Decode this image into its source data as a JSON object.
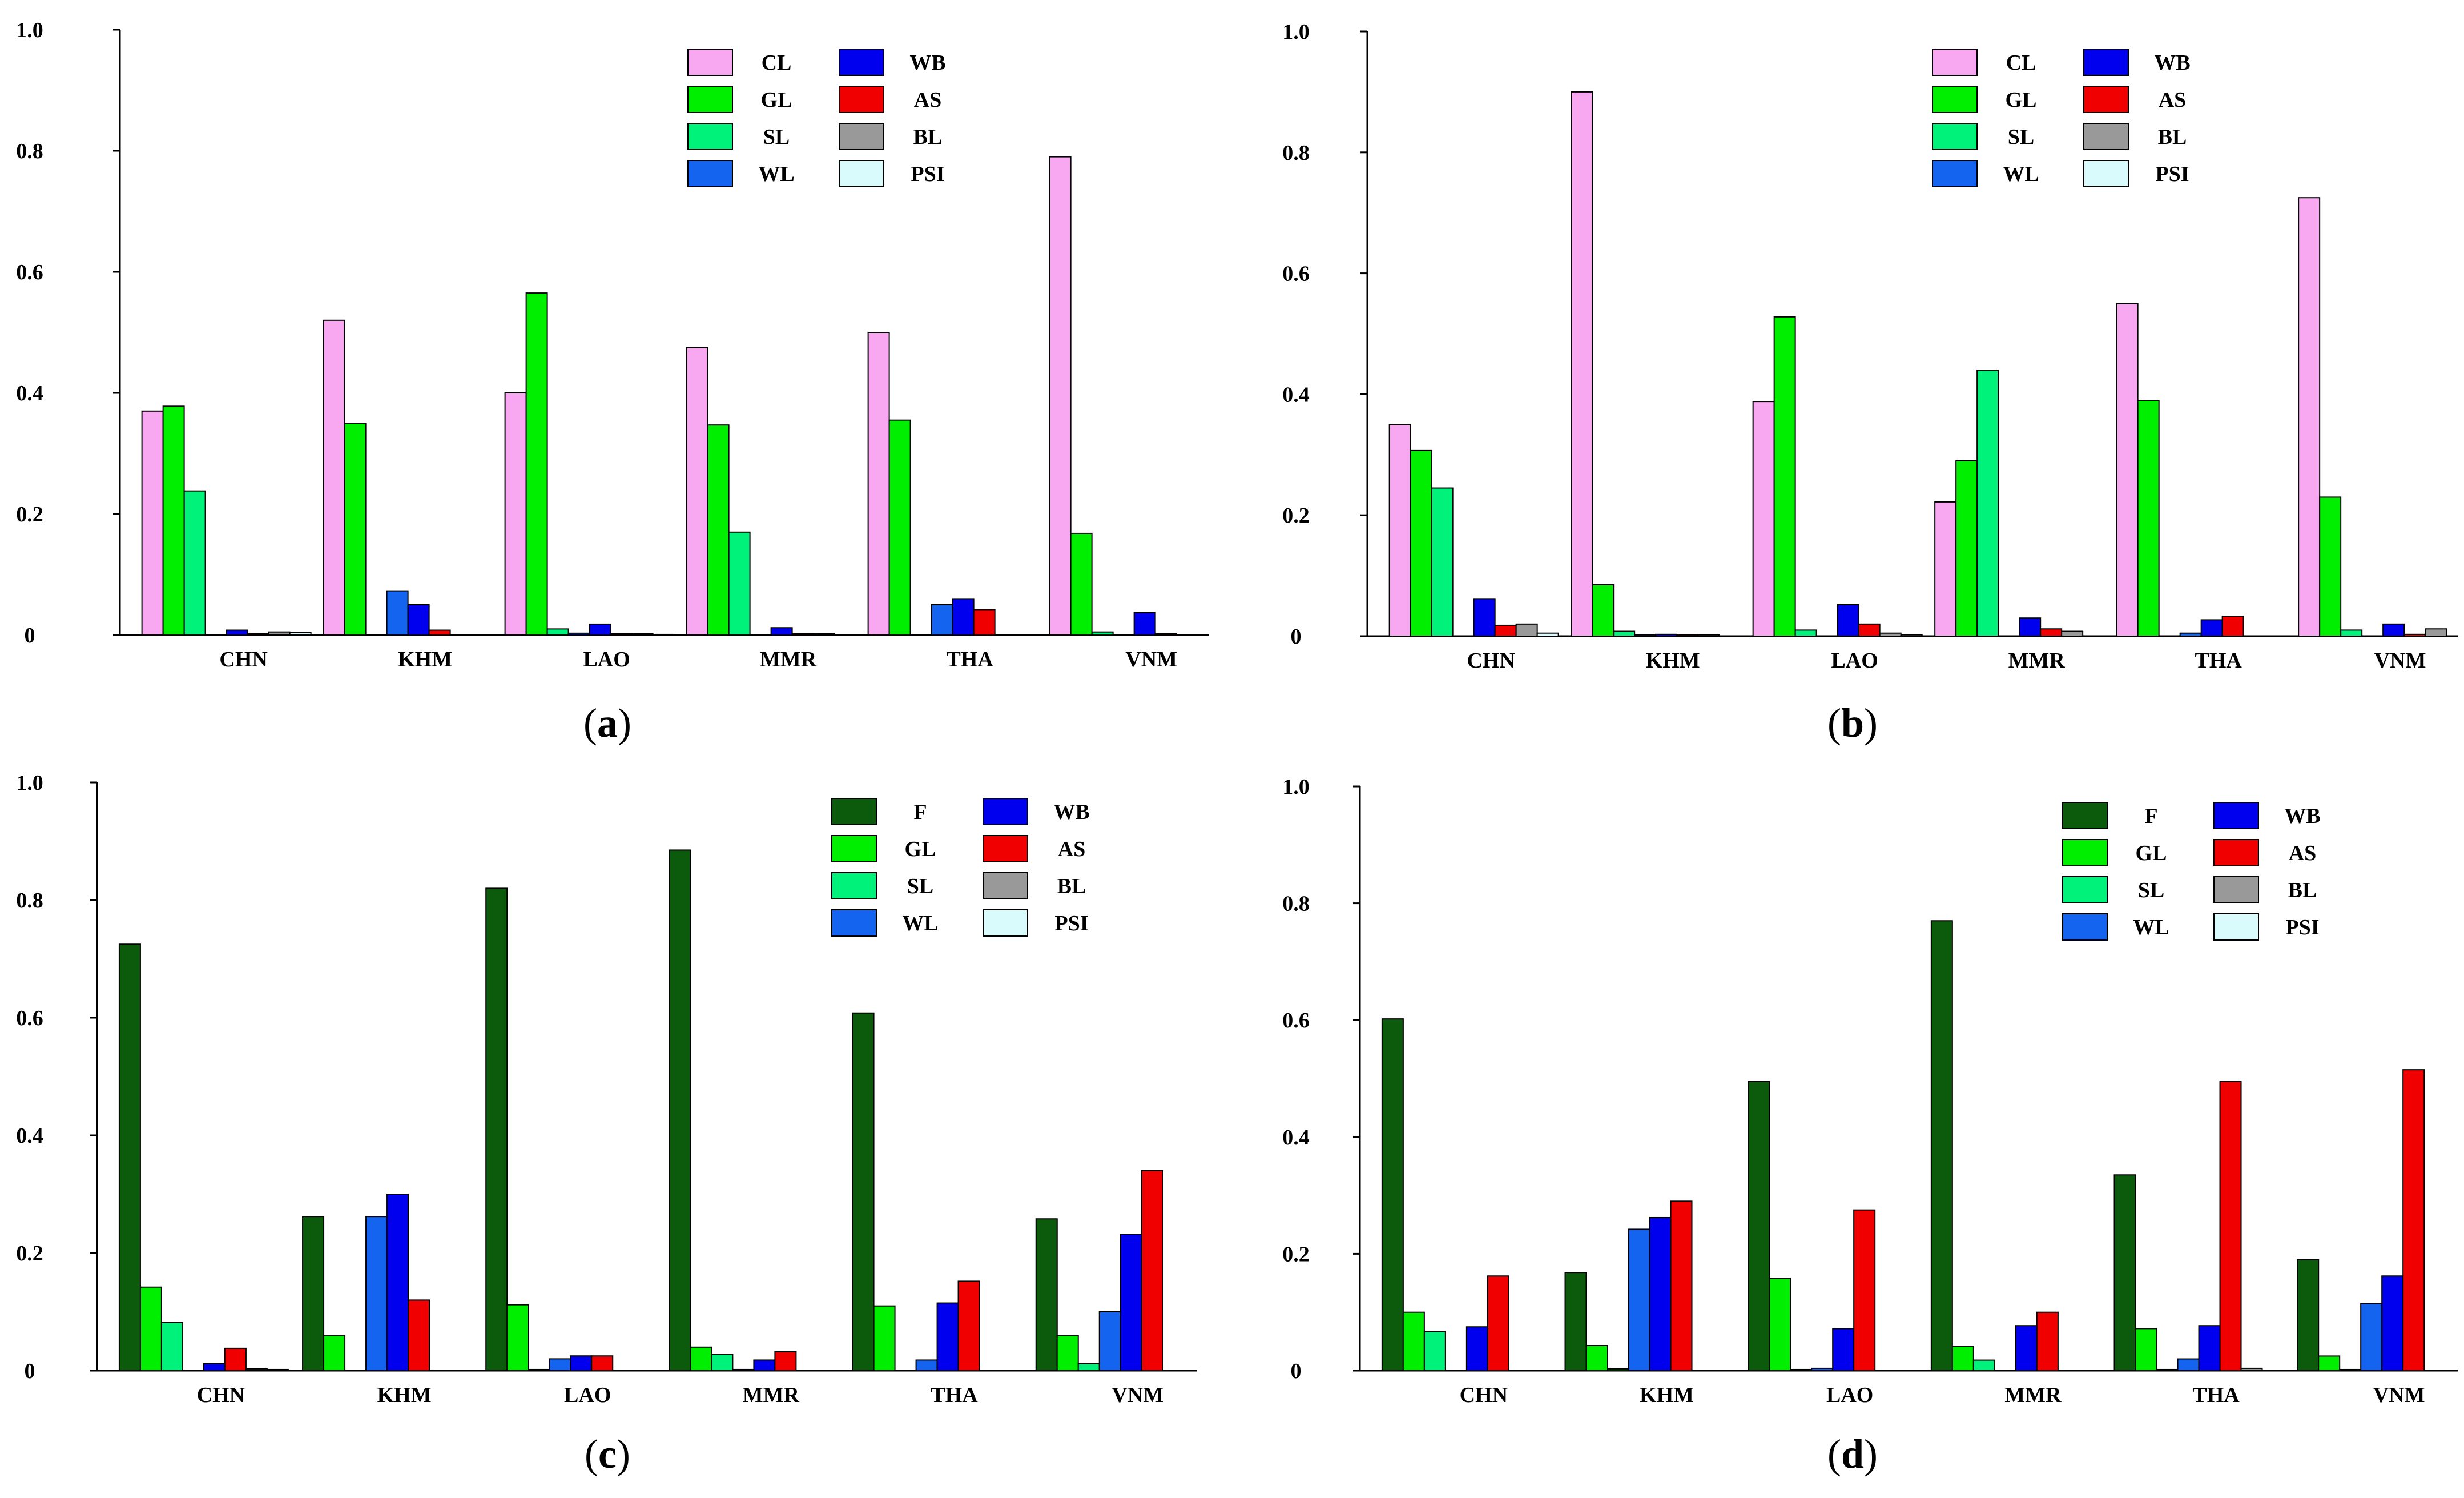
{
  "colors": {
    "F": "#0c5a0c",
    "CL": "#f7a8f0",
    "GL": "#00ee00",
    "SL": "#00f27a",
    "WL": "#1464f0",
    "WB": "#0000ee",
    "AS": "#f00000",
    "BL": "#999999",
    "PSI": "#d9fbfb"
  },
  "chart_data": [
    {
      "type": "bar",
      "panel_label": "(a)",
      "categories": [
        "CHN",
        "KHM",
        "LAO",
        "MMR",
        "THA",
        "VNM"
      ],
      "ylim": [
        0,
        1.0
      ],
      "yticks": [
        "0",
        "0.2",
        "0.4",
        "0.6",
        "0.8",
        "1.0"
      ],
      "xlabel": "",
      "ylabel": "",
      "legend": [
        "CL",
        "GL",
        "SL",
        "WL",
        "WB",
        "AS",
        "BL",
        "PSI"
      ],
      "series": [
        {
          "name": "CL",
          "values": [
            0.37,
            0.52,
            0.4,
            0.475,
            0.5,
            0.79
          ]
        },
        {
          "name": "GL",
          "values": [
            0.378,
            0.35,
            0.565,
            0.347,
            0.355,
            0.168
          ]
        },
        {
          "name": "SL",
          "values": [
            0.238,
            0.0,
            0.01,
            0.17,
            0.0,
            0.005
          ]
        },
        {
          "name": "WL",
          "values": [
            0.0,
            0.073,
            0.003,
            0.0,
            0.05,
            0.0
          ]
        },
        {
          "name": "WB",
          "values": [
            0.008,
            0.05,
            0.018,
            0.012,
            0.06,
            0.037
          ]
        },
        {
          "name": "AS",
          "values": [
            0.002,
            0.008,
            0.002,
            0.002,
            0.042,
            0.002
          ]
        },
        {
          "name": "BL",
          "values": [
            0.005,
            0.0,
            0.002,
            0.002,
            0.0,
            0.0
          ]
        },
        {
          "name": "PSI",
          "values": [
            0.004,
            0.0,
            0.001,
            0.0,
            0.0,
            0.0
          ]
        }
      ]
    },
    {
      "type": "bar",
      "panel_label": "(b)",
      "categories": [
        "CHN",
        "KHM",
        "LAO",
        "MMR",
        "THA",
        "VNM"
      ],
      "ylim": [
        0,
        1.0
      ],
      "yticks": [
        "0",
        "0.2",
        "0.4",
        "0.6",
        "0.8",
        "1.0"
      ],
      "xlabel": "",
      "ylabel": "",
      "legend": [
        "CL",
        "GL",
        "SL",
        "WL",
        "WB",
        "AS",
        "BL",
        "PSI"
      ],
      "series": [
        {
          "name": "CL",
          "values": [
            0.35,
            0.9,
            0.388,
            0.222,
            0.55,
            0.725
          ]
        },
        {
          "name": "GL",
          "values": [
            0.307,
            0.085,
            0.528,
            0.29,
            0.39,
            0.23
          ]
        },
        {
          "name": "SL",
          "values": [
            0.245,
            0.008,
            0.01,
            0.44,
            0.0,
            0.01
          ]
        },
        {
          "name": "WL",
          "values": [
            0.0,
            0.002,
            0.0,
            0.0,
            0.005,
            0.0
          ]
        },
        {
          "name": "WB",
          "values": [
            0.062,
            0.003,
            0.052,
            0.03,
            0.027,
            0.02
          ]
        },
        {
          "name": "AS",
          "values": [
            0.018,
            0.002,
            0.02,
            0.012,
            0.033,
            0.003
          ]
        },
        {
          "name": "BL",
          "values": [
            0.02,
            0.002,
            0.005,
            0.008,
            0.0,
            0.012
          ]
        },
        {
          "name": "PSI",
          "values": [
            0.005,
            0.0,
            0.002,
            0.0,
            0.0,
            0.0
          ]
        }
      ]
    },
    {
      "type": "bar",
      "panel_label": "(c)",
      "categories": [
        "CHN",
        "KHM",
        "LAO",
        "MMR",
        "THA",
        "VNM"
      ],
      "ylim": [
        0,
        1.0
      ],
      "yticks": [
        "0",
        "0.2",
        "0.4",
        "0.6",
        "0.8",
        "1.0"
      ],
      "xlabel": "",
      "ylabel": "",
      "legend": [
        "F",
        "GL",
        "SL",
        "WL",
        "WB",
        "AS",
        "BL",
        "PSI"
      ],
      "series": [
        {
          "name": "F",
          "values": [
            0.725,
            0.262,
            0.82,
            0.885,
            0.608,
            0.258
          ]
        },
        {
          "name": "GL",
          "values": [
            0.142,
            0.06,
            0.112,
            0.04,
            0.11,
            0.06
          ]
        },
        {
          "name": "SL",
          "values": [
            0.082,
            0.0,
            0.002,
            0.028,
            0.0,
            0.012
          ]
        },
        {
          "name": "WL",
          "values": [
            0.0,
            0.262,
            0.02,
            0.002,
            0.018,
            0.1
          ]
        },
        {
          "name": "WB",
          "values": [
            0.012,
            0.3,
            0.025,
            0.018,
            0.115,
            0.232
          ]
        },
        {
          "name": "AS",
          "values": [
            0.038,
            0.12,
            0.025,
            0.032,
            0.152,
            0.34
          ]
        },
        {
          "name": "BL",
          "values": [
            0.003,
            0.0,
            0.0,
            0.0,
            0.0,
            0.0
          ]
        },
        {
          "name": "PSI",
          "values": [
            0.002,
            0.0,
            0.0,
            0.0,
            0.0,
            0.0
          ]
        }
      ]
    },
    {
      "type": "bar",
      "panel_label": "(d)",
      "categories": [
        "CHN",
        "KHM",
        "LAO",
        "MMR",
        "THA",
        "VNM"
      ],
      "ylim": [
        0,
        1.0
      ],
      "yticks": [
        "0",
        "0.2",
        "0.4",
        "0.6",
        "0.8",
        "1.0"
      ],
      "xlabel": "",
      "ylabel": "",
      "legend": [
        "F",
        "GL",
        "SL",
        "WL",
        "WB",
        "AS",
        "BL",
        "PSI"
      ],
      "series": [
        {
          "name": "F",
          "values": [
            0.602,
            0.168,
            0.495,
            0.77,
            0.335,
            0.19
          ]
        },
        {
          "name": "GL",
          "values": [
            0.1,
            0.043,
            0.158,
            0.042,
            0.072,
            0.025
          ]
        },
        {
          "name": "SL",
          "values": [
            0.067,
            0.003,
            0.002,
            0.018,
            0.002,
            0.002
          ]
        },
        {
          "name": "WL",
          "values": [
            0.0,
            0.242,
            0.004,
            0.0,
            0.02,
            0.115
          ]
        },
        {
          "name": "WB",
          "values": [
            0.075,
            0.262,
            0.072,
            0.077,
            0.077,
            0.162
          ]
        },
        {
          "name": "AS",
          "values": [
            0.162,
            0.29,
            0.275,
            0.1,
            0.495,
            0.515
          ]
        },
        {
          "name": "BL",
          "values": [
            0.0,
            0.0,
            0.0,
            0.0,
            0.004,
            0.0
          ]
        },
        {
          "name": "PSI",
          "values": [
            0.0,
            0.0,
            0.0,
            0.0,
            0.0,
            0.0
          ]
        }
      ]
    }
  ]
}
